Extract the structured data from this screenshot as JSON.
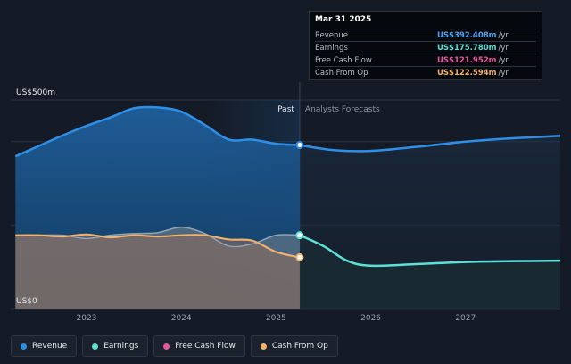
{
  "tooltip": {
    "date": "Mar 31 2025",
    "rows": [
      {
        "label": "Revenue",
        "value": "US$392.408m",
        "unit": "/yr",
        "color": "#4fa3f0"
      },
      {
        "label": "Earnings",
        "value": "US$175.780m",
        "unit": "/yr",
        "color": "#5ee0d6"
      },
      {
        "label": "Free Cash Flow",
        "value": "US$121.952m",
        "unit": "/yr",
        "color": "#e35a9a"
      },
      {
        "label": "Cash From Op",
        "value": "US$122.594m",
        "unit": "/yr",
        "color": "#f2b46b"
      }
    ]
  },
  "legend": [
    {
      "label": "Revenue",
      "color": "#2f8fe6"
    },
    {
      "label": "Earnings",
      "color": "#5ee0d6"
    },
    {
      "label": "Free Cash Flow",
      "color": "#e35a9a"
    },
    {
      "label": "Cash From Op",
      "color": "#f2b46b"
    }
  ],
  "chart_data": {
    "type": "area",
    "y_top_label": "US$500m",
    "y_bottom_label": "US$0",
    "ylim": [
      0,
      500
    ],
    "xlim": [
      2022.2,
      2028.0
    ],
    "x_ticks": [
      "2023",
      "2024",
      "2025",
      "2026",
      "2027"
    ],
    "x_tick_values": [
      2023,
      2024,
      2025,
      2026,
      2027
    ],
    "past_label": "Past",
    "forecast_label": "Analysts Forecasts",
    "divider_x": 2025.25,
    "series": [
      {
        "name": "Revenue",
        "color": "#2f8fe6",
        "x": [
          2022.25,
          2022.5,
          2022.75,
          2023.0,
          2023.25,
          2023.5,
          2023.75,
          2024.0,
          2024.25,
          2024.5,
          2024.75,
          2025.0,
          2025.25
        ],
        "values": [
          365,
          390,
          415,
          438,
          458,
          480,
          482,
          472,
          440,
          405,
          405,
          395,
          392
        ]
      },
      {
        "name": "Earnings",
        "color": "#5ee0d6",
        "x": [
          2022.25,
          2022.5,
          2022.75,
          2023.0,
          2023.25,
          2023.5,
          2023.75,
          2024.0,
          2024.25,
          2024.5,
          2024.75,
          2025.0,
          2025.25
        ],
        "values": [
          175,
          176,
          176,
          168,
          176,
          180,
          182,
          195,
          180,
          150,
          155,
          176,
          176
        ]
      },
      {
        "name": "Free Cash Flow",
        "color": "#e35a9a",
        "x": [
          2022.25,
          2022.5,
          2022.75,
          2023.0,
          2023.25,
          2023.5,
          2023.75,
          2024.0,
          2024.25,
          2024.5,
          2024.75,
          2025.0,
          2025.25
        ],
        "values": [
          175,
          175,
          172,
          178,
          170,
          175,
          172,
          175,
          175,
          165,
          162,
          135,
          122
        ]
      },
      {
        "name": "Cash From Op",
        "color": "#f2b46b",
        "x": [
          2022.25,
          2022.5,
          2022.75,
          2023.0,
          2023.25,
          2023.5,
          2023.75,
          2024.0,
          2024.25,
          2024.5,
          2024.75,
          2025.0,
          2025.25
        ],
        "values": [
          176,
          176,
          173,
          178,
          171,
          176,
          173,
          176,
          176,
          166,
          163,
          136,
          123
        ]
      }
    ],
    "forecasts": [
      {
        "name": "Revenue",
        "x": [
          2025.25,
          2025.6,
          2026.0,
          2026.5,
          2027.0,
          2027.5,
          2028.0
        ],
        "values": [
          392,
          380,
          378,
          388,
          400,
          408,
          414
        ]
      },
      {
        "name": "Earnings",
        "x": [
          2025.25,
          2025.5,
          2025.75,
          2026.0,
          2026.5,
          2027.0,
          2027.5,
          2028.0
        ],
        "values": [
          176,
          150,
          115,
          103,
          107,
          112,
          114,
          115
        ]
      }
    ]
  }
}
